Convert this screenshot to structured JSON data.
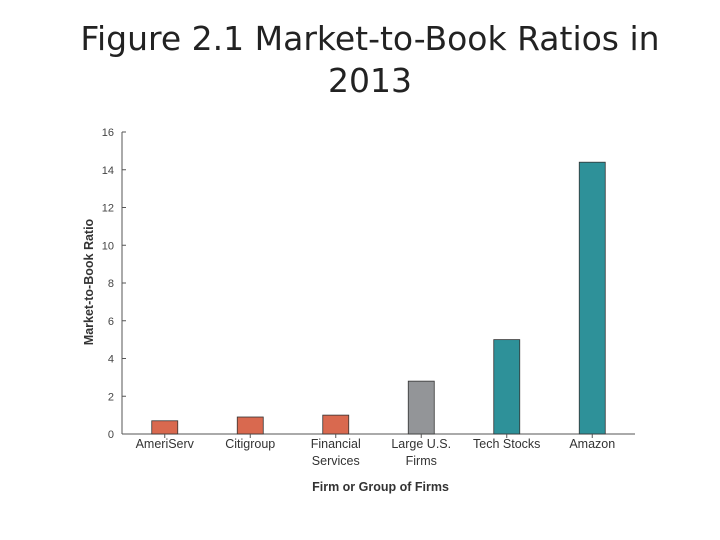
{
  "slide": {
    "title_line1": "Figure 2.1  Market-to-Book Ratios in",
    "title_line2": "2013"
  },
  "chart_data": {
    "type": "bar",
    "title": "",
    "xlabel": "Firm or Group of Firms",
    "ylabel": "Market-to-Book Ratio",
    "ylim": [
      0,
      16
    ],
    "yticks": [
      0,
      2,
      4,
      6,
      8,
      10,
      12,
      14,
      16
    ],
    "categories": [
      [
        "AmeriServ"
      ],
      [
        "Citigroup"
      ],
      [
        "Financial",
        "Services"
      ],
      [
        "Large U.S.",
        "Firms"
      ],
      [
        "Tech Stocks"
      ],
      [
        "Amazon"
      ]
    ],
    "values": [
      0.7,
      0.9,
      1.0,
      2.8,
      5.0,
      14.4
    ],
    "colors": [
      "#d9694f",
      "#d9694f",
      "#d9694f",
      "#939598",
      "#2e9199",
      "#2e9199"
    ],
    "grid": false
  }
}
